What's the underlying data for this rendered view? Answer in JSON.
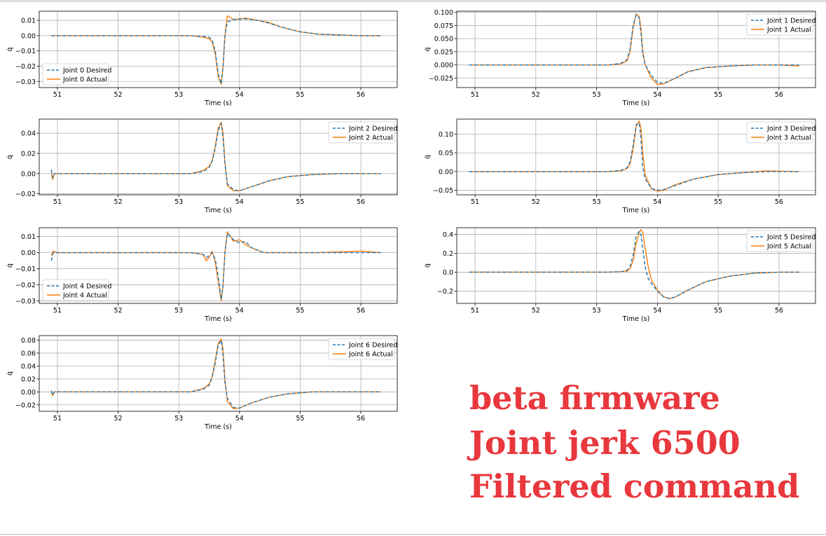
{
  "caption": {
    "line1": "beta firmware",
    "line2": "Joint jerk 6500",
    "line3": "Filtered command",
    "color": "#e8383d"
  },
  "colors": {
    "desired": "#1f77b4",
    "actual": "#ff7f0e",
    "grid": "#b0b0b0"
  },
  "chart_data": [
    {
      "type": "line",
      "joint": 0,
      "xlabel": "Time (s)",
      "ylabel": "q̇",
      "legend": "lower-left",
      "xlim": [
        50.7,
        56.6
      ],
      "ylim": [
        -0.034,
        0.016
      ],
      "xticks": [
        51,
        52,
        53,
        54,
        55,
        56
      ],
      "yticks": [
        -0.03,
        -0.02,
        -0.01,
        0.0,
        0.01
      ],
      "ytick_labels": [
        "−0.03",
        "−0.02",
        "−0.01",
        "0.00",
        "0.01"
      ],
      "series": [
        {
          "name": "Joint 0 Desired",
          "style": "dashed",
          "x": [
            50.9,
            51.5,
            52.5,
            53.2,
            53.4,
            53.5,
            53.55,
            53.6,
            53.65,
            53.7,
            53.73,
            53.76,
            53.8,
            53.9,
            54.1,
            54.3,
            54.5,
            54.7,
            55.0,
            55.3,
            55.6,
            56.0,
            56.33
          ],
          "y": [
            0.0,
            0.0,
            0.0,
            0.0,
            -0.0005,
            -0.001,
            -0.003,
            -0.01,
            -0.025,
            -0.0315,
            -0.02,
            0.0,
            0.009,
            0.0105,
            0.011,
            0.01,
            0.008,
            0.0055,
            0.0025,
            0.001,
            0.0005,
            0.0,
            0.0
          ]
        },
        {
          "name": "Joint 0 Actual",
          "style": "solid",
          "x": [
            50.9,
            51.5,
            52.5,
            53.2,
            53.4,
            53.5,
            53.55,
            53.6,
            53.65,
            53.7,
            53.73,
            53.76,
            53.8,
            53.9,
            54.1,
            54.3,
            54.5,
            54.7,
            55.0,
            55.3,
            55.6,
            56.0,
            56.33
          ],
          "y": [
            0.0,
            0.0,
            0.0,
            0.0,
            -0.001,
            -0.002,
            -0.004,
            -0.012,
            -0.027,
            -0.032,
            -0.02,
            0.0,
            0.013,
            0.0105,
            0.0115,
            0.01,
            0.0085,
            0.0055,
            0.0025,
            0.001,
            0.0005,
            0.0,
            0.0
          ]
        }
      ]
    },
    {
      "type": "line",
      "joint": 1,
      "xlabel": "Time (s)",
      "ylabel": "q̇",
      "legend": "upper-right",
      "xlim": [
        50.7,
        56.6
      ],
      "ylim": [
        -0.043,
        0.102
      ],
      "xticks": [
        51,
        52,
        53,
        54,
        55,
        56
      ],
      "yticks": [
        -0.025,
        0.0,
        0.025,
        0.05,
        0.075,
        0.1
      ],
      "ytick_labels": [
        "−0.025",
        "0.000",
        "0.025",
        "0.050",
        "0.075",
        "0.100"
      ],
      "series": [
        {
          "name": "Joint 1 Desired",
          "style": "dashed",
          "x": [
            50.9,
            51.5,
            52.5,
            53.2,
            53.4,
            53.5,
            53.55,
            53.6,
            53.65,
            53.7,
            53.73,
            53.76,
            53.8,
            53.9,
            54.0,
            54.1,
            54.3,
            54.5,
            54.8,
            55.2,
            55.6,
            56.0,
            56.33
          ],
          "y": [
            0.0,
            0.0,
            0.0,
            0.0,
            0.003,
            0.01,
            0.03,
            0.075,
            0.095,
            0.09,
            0.06,
            0.02,
            0.0,
            -0.02,
            -0.033,
            -0.035,
            -0.025,
            -0.013,
            -0.005,
            -0.002,
            0.0,
            0.0,
            0.0
          ]
        },
        {
          "name": "Joint 1 Actual",
          "style": "solid",
          "x": [
            50.9,
            51.5,
            52.5,
            53.2,
            53.4,
            53.5,
            53.55,
            53.6,
            53.65,
            53.7,
            53.73,
            53.76,
            53.8,
            53.9,
            54.0,
            54.1,
            54.3,
            54.5,
            54.8,
            55.2,
            55.6,
            56.0,
            56.33
          ],
          "y": [
            0.0,
            0.0,
            0.0,
            0.0,
            0.002,
            0.008,
            0.025,
            0.07,
            0.097,
            0.092,
            0.07,
            0.025,
            0.0,
            -0.025,
            -0.037,
            -0.036,
            -0.025,
            -0.013,
            -0.005,
            -0.002,
            0.0,
            0.0,
            -0.002
          ]
        }
      ]
    },
    {
      "type": "line",
      "joint": 2,
      "xlabel": "Time (s)",
      "ylabel": "q̇",
      "legend": "upper-right",
      "xlim": [
        50.7,
        56.6
      ],
      "ylim": [
        -0.021,
        0.054
      ],
      "xticks": [
        51,
        52,
        53,
        54,
        55,
        56
      ],
      "yticks": [
        -0.02,
        0.0,
        0.02,
        0.04
      ],
      "ytick_labels": [
        "−0.02",
        "0.00",
        "0.02",
        "0.04"
      ],
      "series": [
        {
          "name": "Joint 2 Desired",
          "style": "dashed",
          "x": [
            50.9,
            50.92,
            50.95,
            51.5,
            52.5,
            53.2,
            53.4,
            53.5,
            53.55,
            53.6,
            53.65,
            53.7,
            53.73,
            53.76,
            53.8,
            53.9,
            54.0,
            54.2,
            54.5,
            54.8,
            55.2,
            55.6,
            56.0,
            56.33
          ],
          "y": [
            0.004,
            -0.004,
            0.0,
            0.0,
            0.0,
            0.0,
            0.002,
            0.006,
            0.012,
            0.025,
            0.043,
            0.05,
            0.035,
            0.01,
            -0.01,
            -0.016,
            -0.017,
            -0.013,
            -0.007,
            -0.003,
            -0.001,
            0.0,
            0.0,
            0.0
          ]
        },
        {
          "name": "Joint 2 Actual",
          "style": "solid",
          "x": [
            50.9,
            50.92,
            50.95,
            51.5,
            52.5,
            53.2,
            53.4,
            53.5,
            53.55,
            53.6,
            53.65,
            53.7,
            53.73,
            53.76,
            53.8,
            53.9,
            54.0,
            54.2,
            54.5,
            54.8,
            55.2,
            55.6,
            56.0,
            56.33
          ],
          "y": [
            0.001,
            -0.006,
            0.0,
            0.0,
            0.0,
            0.0,
            0.003,
            0.007,
            0.013,
            0.027,
            0.045,
            0.051,
            0.04,
            0.012,
            -0.012,
            -0.017,
            -0.017,
            -0.013,
            -0.007,
            -0.003,
            -0.001,
            0.0,
            0.0,
            0.0
          ]
        }
      ]
    },
    {
      "type": "line",
      "joint": 3,
      "xlabel": "Time (s)",
      "ylabel": "q̇",
      "legend": "upper-right",
      "xlim": [
        50.7,
        56.6
      ],
      "ylim": [
        -0.062,
        0.14
      ],
      "xticks": [
        51,
        52,
        53,
        54,
        55,
        56
      ],
      "yticks": [
        -0.05,
        0.0,
        0.05,
        0.1
      ],
      "ytick_labels": [
        "−0.05",
        "0.00",
        "0.05",
        "0.10"
      ],
      "series": [
        {
          "name": "Joint 3 Desired",
          "style": "dashed",
          "x": [
            50.9,
            51.5,
            52.5,
            53.2,
            53.4,
            53.5,
            53.55,
            53.6,
            53.65,
            53.7,
            53.73,
            53.76,
            53.8,
            53.9,
            54.0,
            54.1,
            54.3,
            54.6,
            55.0,
            55.4,
            55.8,
            56.33
          ],
          "y": [
            0.0,
            0.0,
            0.0,
            0.0,
            0.003,
            0.01,
            0.025,
            0.07,
            0.125,
            0.13,
            0.09,
            0.01,
            -0.02,
            -0.045,
            -0.05,
            -0.048,
            -0.037,
            -0.02,
            -0.008,
            -0.003,
            0.0,
            0.0
          ]
        },
        {
          "name": "Joint 3 Actual",
          "style": "solid",
          "x": [
            50.9,
            51.5,
            52.5,
            53.2,
            53.4,
            53.5,
            53.55,
            53.6,
            53.65,
            53.7,
            53.73,
            53.76,
            53.8,
            53.9,
            54.0,
            54.1,
            54.3,
            54.6,
            55.0,
            55.4,
            55.8,
            56.33
          ],
          "y": [
            0.0,
            0.0,
            0.0,
            0.0,
            0.002,
            0.008,
            0.02,
            0.06,
            0.12,
            0.135,
            0.115,
            0.05,
            -0.01,
            -0.045,
            -0.052,
            -0.05,
            -0.035,
            -0.02,
            -0.008,
            -0.003,
            0.002,
            0.0
          ]
        }
      ]
    },
    {
      "type": "line",
      "joint": 4,
      "xlabel": "Time (s)",
      "ylabel": "q̇",
      "legend": "lower-left",
      "xlim": [
        50.7,
        56.6
      ],
      "ylim": [
        -0.0315,
        0.0155
      ],
      "xticks": [
        51,
        52,
        53,
        54,
        55,
        56
      ],
      "yticks": [
        -0.03,
        -0.02,
        -0.01,
        0.0,
        0.01
      ],
      "ytick_labels": [
        "−0.03",
        "−0.02",
        "−0.01",
        "0.00",
        "0.01"
      ],
      "series": [
        {
          "name": "Joint 4 Desired",
          "style": "dashed",
          "x": [
            50.9,
            50.93,
            51.0,
            51.5,
            52.5,
            53.2,
            53.4,
            53.45,
            53.5,
            53.55,
            53.6,
            53.65,
            53.7,
            53.73,
            53.76,
            53.8,
            53.9,
            54.0,
            54.1,
            54.2,
            54.4,
            54.8,
            55.3,
            56.0,
            56.33
          ],
          "y": [
            -0.005,
            0.0,
            0.0,
            0.0,
            0.0,
            0.0,
            -0.001,
            -0.003,
            -0.002,
            0.0,
            -0.004,
            -0.015,
            -0.029,
            -0.02,
            0.0,
            0.012,
            0.008,
            0.006,
            0.007,
            0.003,
            0.0,
            0.0,
            0.0,
            0.0,
            0.0
          ]
        },
        {
          "name": "Joint 4 Actual",
          "style": "solid",
          "x": [
            50.9,
            50.93,
            51.0,
            51.5,
            52.5,
            53.2,
            53.4,
            53.45,
            53.5,
            53.55,
            53.6,
            53.65,
            53.7,
            53.73,
            53.76,
            53.8,
            53.9,
            54.0,
            54.1,
            54.2,
            54.4,
            54.8,
            55.3,
            56.0,
            56.33
          ],
          "y": [
            -0.002,
            0.001,
            0.0,
            0.0,
            0.0,
            0.0,
            -0.001,
            -0.005,
            -0.003,
            0.001,
            -0.006,
            -0.018,
            -0.03,
            -0.02,
            0.0,
            0.013,
            0.007,
            0.008,
            0.005,
            0.003,
            0.0,
            0.0,
            0.0,
            0.001,
            0.0
          ]
        }
      ]
    },
    {
      "type": "line",
      "joint": 5,
      "xlabel": "Time (s)",
      "ylabel": "q̇",
      "legend": "upper-right",
      "xlim": [
        50.7,
        56.6
      ],
      "ylim": [
        -0.33,
        0.47
      ],
      "xticks": [
        51,
        52,
        53,
        54,
        55,
        56
      ],
      "yticks": [
        -0.2,
        0.0,
        0.2,
        0.4
      ],
      "ytick_labels": [
        "−0.2",
        "0.0",
        "0.2",
        "0.4"
      ],
      "series": [
        {
          "name": "Joint 5 Desired",
          "style": "dashed",
          "x": [
            50.9,
            51.5,
            52.5,
            53.2,
            53.4,
            53.5,
            53.55,
            53.6,
            53.65,
            53.7,
            53.73,
            53.76,
            53.8,
            53.85,
            53.9,
            54.0,
            54.1,
            54.2,
            54.3,
            54.5,
            54.8,
            55.2,
            55.6,
            56.0,
            56.33
          ],
          "y": [
            0.0,
            0.0,
            0.0,
            0.0,
            0.005,
            0.02,
            0.06,
            0.18,
            0.38,
            0.43,
            0.4,
            0.25,
            0.05,
            -0.07,
            -0.12,
            -0.2,
            -0.26,
            -0.28,
            -0.26,
            -0.19,
            -0.1,
            -0.04,
            -0.01,
            0.0,
            0.0
          ]
        },
        {
          "name": "Joint 5 Actual",
          "style": "solid",
          "x": [
            50.9,
            51.5,
            52.5,
            53.2,
            53.4,
            53.5,
            53.55,
            53.6,
            53.65,
            53.7,
            53.73,
            53.76,
            53.8,
            53.85,
            53.9,
            54.0,
            54.1,
            54.2,
            54.3,
            54.5,
            54.8,
            55.2,
            55.6,
            56.0,
            56.33
          ],
          "y": [
            0.0,
            0.0,
            0.0,
            0.0,
            0.005,
            0.01,
            0.04,
            0.12,
            0.3,
            0.42,
            0.45,
            0.42,
            0.25,
            0.05,
            -0.08,
            -0.19,
            -0.26,
            -0.28,
            -0.26,
            -0.19,
            -0.1,
            -0.04,
            -0.01,
            0.0,
            0.0
          ]
        }
      ]
    },
    {
      "type": "line",
      "joint": 6,
      "xlabel": "Time (s)",
      "ylabel": "q̇",
      "legend": "upper-right",
      "xlim": [
        50.7,
        56.6
      ],
      "ylim": [
        -0.03,
        0.087
      ],
      "xticks": [
        51,
        52,
        53,
        54,
        55,
        56
      ],
      "yticks": [
        -0.02,
        0.0,
        0.02,
        0.04,
        0.06,
        0.08
      ],
      "ytick_labels": [
        "−0.02",
        "0.00",
        "0.02",
        "0.04",
        "0.06",
        "0.08"
      ],
      "series": [
        {
          "name": "Joint 6 Desired",
          "style": "dashed",
          "x": [
            50.9,
            50.92,
            50.95,
            51.5,
            52.5,
            53.2,
            53.4,
            53.5,
            53.55,
            53.6,
            53.65,
            53.7,
            53.73,
            53.76,
            53.8,
            53.9,
            54.0,
            54.2,
            54.5,
            54.8,
            55.2,
            55.6,
            56.0,
            56.33
          ],
          "y": [
            0.002,
            -0.005,
            0.0,
            0.0,
            0.0,
            0.0,
            0.004,
            0.01,
            0.022,
            0.045,
            0.072,
            0.08,
            0.055,
            0.015,
            -0.01,
            -0.024,
            -0.025,
            -0.017,
            -0.008,
            -0.003,
            0.0,
            0.0,
            0.0,
            0.0
          ]
        },
        {
          "name": "Joint 6 Actual",
          "style": "solid",
          "x": [
            50.9,
            50.92,
            50.95,
            51.5,
            52.5,
            53.2,
            53.4,
            53.5,
            53.55,
            53.6,
            53.65,
            53.7,
            53.73,
            53.76,
            53.8,
            53.9,
            54.0,
            54.2,
            54.5,
            54.8,
            55.2,
            55.6,
            56.0,
            56.33
          ],
          "y": [
            0.0,
            -0.006,
            0.0,
            0.0,
            0.0,
            0.0,
            0.005,
            0.012,
            0.024,
            0.048,
            0.075,
            0.082,
            0.065,
            0.02,
            -0.015,
            -0.026,
            -0.025,
            -0.017,
            -0.008,
            -0.003,
            0.0,
            0.0,
            0.0,
            0.0
          ]
        }
      ]
    }
  ]
}
